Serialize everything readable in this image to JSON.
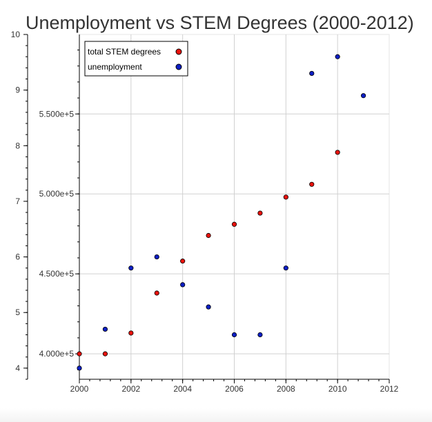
{
  "chart_data": {
    "type": "scatter",
    "title": "Unemployment vs STEM Degrees (2000-2012)",
    "xlabel": "",
    "ylabel": "",
    "xlim": [
      2000,
      2012
    ],
    "x_ticks": [
      2000,
      2002,
      2004,
      2006,
      2008,
      2010,
      2012
    ],
    "y_left": {
      "lim": [
        3.8,
        10
      ],
      "ticks": [
        4,
        5,
        6,
        7,
        8,
        9,
        10
      ]
    },
    "y_inner": {
      "lim": [
        384100,
        599700
      ],
      "ticks": [
        400000,
        450000,
        500000,
        550000
      ],
      "tick_labels": [
        "4.000e+5",
        "4.500e+5",
        "5.000e+5",
        "5.500e+5"
      ]
    },
    "grid": true,
    "legend_position": "top-left",
    "series": [
      {
        "name": "total STEM degrees",
        "axis": "y_inner",
        "color": "#e8120c",
        "x": [
          2000,
          2001,
          2002,
          2003,
          2004,
          2005,
          2006,
          2007,
          2008,
          2009,
          2010
        ],
        "y": [
          400000,
          400000,
          413000,
          438000,
          458000,
          474000,
          481000,
          488000,
          498000,
          506000,
          526000
        ]
      },
      {
        "name": "unemployment",
        "axis": "y_left",
        "color": "#0c1fc4",
        "x": [
          2000,
          2001,
          2002,
          2003,
          2004,
          2005,
          2006,
          2007,
          2008,
          2009,
          2010,
          2011
        ],
        "y": [
          4.0,
          4.7,
          5.8,
          6.0,
          5.5,
          5.1,
          4.6,
          4.6,
          5.8,
          9.3,
          9.6,
          8.9
        ]
      }
    ]
  }
}
